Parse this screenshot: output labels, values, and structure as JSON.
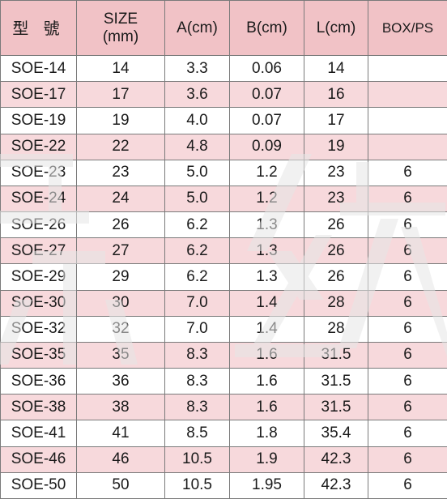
{
  "table": {
    "headers": {
      "model": "型 號",
      "size_line1": "SIZE",
      "size_line2": "(mm)",
      "a": "A(cm)",
      "b": "B(cm)",
      "l": "L(cm)",
      "box": "BOX/PS"
    },
    "rows": [
      {
        "model": "SOE-14",
        "size": "14",
        "a": "3.3",
        "b": "0.06",
        "l": "14",
        "box": ""
      },
      {
        "model": "SOE-17",
        "size": "17",
        "a": "3.6",
        "b": "0.07",
        "l": "16",
        "box": ""
      },
      {
        "model": "SOE-19",
        "size": "19",
        "a": "4.0",
        "b": "0.07",
        "l": "17",
        "box": ""
      },
      {
        "model": "SOE-22",
        "size": "22",
        "a": "4.8",
        "b": "0.09",
        "l": "19",
        "box": ""
      },
      {
        "model": "SOE-23",
        "size": "23",
        "a": "5.0",
        "b": "1.2",
        "l": "23",
        "box": "6"
      },
      {
        "model": "SOE-24",
        "size": "24",
        "a": "5.0",
        "b": "1.2",
        "l": "23",
        "box": "6"
      },
      {
        "model": "SOE-26",
        "size": "26",
        "a": "6.2",
        "b": "1.3",
        "l": "26",
        "box": "6"
      },
      {
        "model": "SOE-27",
        "size": "27",
        "a": "6.2",
        "b": "1.3",
        "l": "26",
        "box": "6"
      },
      {
        "model": "SOE-29",
        "size": "29",
        "a": "6.2",
        "b": "1.3",
        "l": "26",
        "box": "6"
      },
      {
        "model": "SOE-30",
        "size": "30",
        "a": "7.0",
        "b": "1.4",
        "l": "28",
        "box": "6"
      },
      {
        "model": "SOE-32",
        "size": "32",
        "a": "7.0",
        "b": "1.4",
        "l": "28",
        "box": "6"
      },
      {
        "model": "SOE-35",
        "size": "35",
        "a": "8.3",
        "b": "1.6",
        "l": "31.5",
        "box": "6"
      },
      {
        "model": "SOE-36",
        "size": "36",
        "a": "8.3",
        "b": "1.6",
        "l": "31.5",
        "box": "6"
      },
      {
        "model": "SOE-38",
        "size": "38",
        "a": "8.3",
        "b": "1.6",
        "l": "31.5",
        "box": "6"
      },
      {
        "model": "SOE-41",
        "size": "41",
        "a": "8.5",
        "b": "1.8",
        "l": "35.4",
        "box": "6"
      },
      {
        "model": "SOE-46",
        "size": "46",
        "a": "10.5",
        "b": "1.9",
        "l": "42.3",
        "box": "6"
      },
      {
        "model": "SOE-50",
        "size": "50",
        "a": "10.5",
        "b": "1.95",
        "l": "42.3",
        "box": "6"
      }
    ]
  },
  "colors": {
    "header_bg": "#f1c2c6",
    "stripe_bg": "#f7d9dc",
    "border": "#7a7a7a",
    "watermark": "#e6e6e6"
  }
}
